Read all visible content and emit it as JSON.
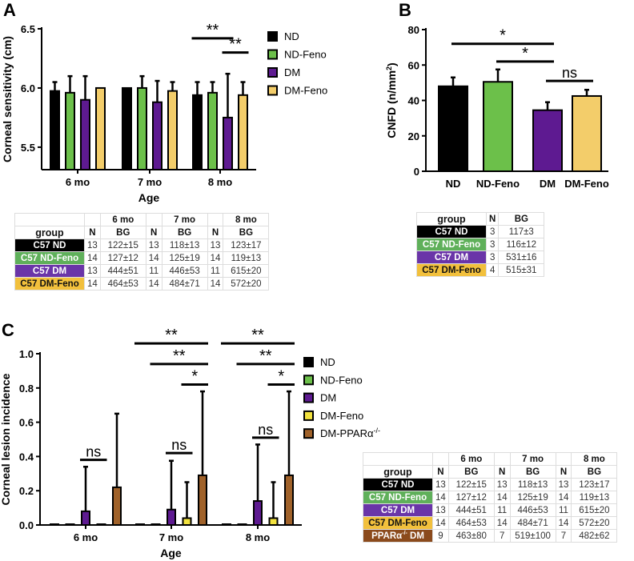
{
  "panels": {
    "a": "A",
    "b": "B",
    "c": "C"
  },
  "chart_data": [
    {
      "id": "A",
      "type": "bar",
      "title": "",
      "xlabel": "Age",
      "ylabel": "Corneal sensitivity (cm)",
      "ylim": [
        5.31,
        6.5
      ],
      "yticks": [
        "5.5",
        "6.0",
        "6.5"
      ],
      "ytick_values": [
        5.5,
        6.0,
        6.5
      ],
      "categories": [
        "6 mo",
        "7 mo",
        "8 mo"
      ],
      "series": [
        {
          "name": "ND",
          "color": "#000000",
          "values": [
            5.975,
            6.0,
            5.94
          ],
          "err_upper": [
            6.05,
            6.0,
            6.05
          ]
        },
        {
          "name": "ND-Feno",
          "color": "#6cc04a",
          "values": [
            5.96,
            6.0,
            5.96
          ],
          "err_upper": [
            6.1,
            6.1,
            6.05
          ]
        },
        {
          "name": "DM",
          "color": "#5e1a91",
          "values": [
            5.9,
            5.88,
            5.75
          ],
          "err_upper": [
            6.1,
            6.06,
            6.12
          ]
        },
        {
          "name": "DM-Feno",
          "color": "#f3cd6a",
          "values": [
            6.0,
            5.975,
            5.94
          ],
          "err_upper": [
            6.0,
            6.05,
            6.05
          ]
        }
      ],
      "legend": "right",
      "annotations": [
        {
          "label": "**",
          "group": 2,
          "from": 0,
          "to": 2,
          "y": 6.42
        },
        {
          "label": "**",
          "group": 2,
          "from": 2,
          "to": 3,
          "y": 6.3
        }
      ]
    },
    {
      "id": "B",
      "type": "bar",
      "title": "",
      "xlabel": "",
      "ylabel": "CNFD (n/mm",
      "ylabel_sup": "2",
      "ylabel_end": ")",
      "ylim": [
        0,
        80
      ],
      "yticks": [
        "0",
        "20",
        "40",
        "60",
        "80"
      ],
      "ytick_values": [
        0,
        20,
        40,
        60,
        80
      ],
      "categories": [
        "ND",
        "ND-Feno",
        "DM",
        "DM-Feno"
      ],
      "colors": [
        "#000000",
        "#6cc04a",
        "#5e1a91",
        "#f3cd6a"
      ],
      "values": [
        48,
        50.5,
        34.5,
        42.5
      ],
      "err_upper": [
        53,
        57.5,
        39,
        46
      ],
      "annotations": [
        {
          "label": "*",
          "from": 0,
          "to": 2,
          "y": 72
        },
        {
          "label": "*",
          "from": 1,
          "to": 2,
          "y": 62
        },
        {
          "label": "ns",
          "from": 2,
          "to": 3,
          "y": 51
        }
      ]
    },
    {
      "id": "C",
      "type": "bar",
      "title": "",
      "xlabel": "Age",
      "ylabel": "Corneal lesion incidence",
      "ylim": [
        0,
        1.0
      ],
      "yticks": [
        "0.0",
        "0.2",
        "0.4",
        "0.6",
        "0.8",
        "1.0"
      ],
      "ytick_values": [
        0,
        0.2,
        0.4,
        0.6,
        0.8,
        1.0
      ],
      "categories": [
        "6 mo",
        "7 mo",
        "8 mo"
      ],
      "series": [
        {
          "name": "ND",
          "color": "#000000",
          "values": [
            0,
            0,
            0
          ],
          "err_upper": [
            0,
            0,
            0
          ]
        },
        {
          "name": "ND-Feno",
          "color": "#6cc04a",
          "values": [
            0,
            0,
            0
          ],
          "err_upper": [
            0,
            0,
            0
          ]
        },
        {
          "name": "DM",
          "color": "#5e1a91",
          "values": [
            0.08,
            0.09,
            0.14
          ],
          "err_upper": [
            0.34,
            0.375,
            0.47
          ]
        },
        {
          "name": "DM-Feno",
          "color": "#f2e23e",
          "values": [
            0,
            0.04,
            0.04
          ],
          "err_upper": [
            0,
            0.25,
            0.25
          ]
        },
        {
          "name": "DM-PPARα",
          "sup": "-/-",
          "color": "#a0622a",
          "values": [
            0.22,
            0.29,
            0.29
          ],
          "err_upper": [
            0.65,
            0.78,
            0.78
          ]
        }
      ],
      "legend": "right",
      "annotations": [
        {
          "label": "ns",
          "group": 0,
          "from": 2,
          "to": 3,
          "y": 0.38
        },
        {
          "label": "ns",
          "group": 1,
          "from": 2,
          "to": 3,
          "y": 0.42
        },
        {
          "label": "ns",
          "group": 2,
          "from": 2,
          "to": 3,
          "y": 0.51
        },
        {
          "label": "**",
          "group": 1,
          "from": 0,
          "to": 4,
          "y": 1.06
        },
        {
          "label": "**",
          "group": 1,
          "from": 1,
          "to": 4,
          "y": 0.94
        },
        {
          "label": "*",
          "group": 1,
          "from": 3,
          "to": 4,
          "y": 0.82
        },
        {
          "label": "**",
          "group": 2,
          "from": 0,
          "to": 4,
          "y": 1.06
        },
        {
          "label": "**",
          "group": 2,
          "from": 1,
          "to": 4,
          "y": 0.94
        },
        {
          "label": "*",
          "group": 2,
          "from": 3,
          "to": 4,
          "y": 0.82
        }
      ]
    }
  ],
  "table_a": {
    "months": [
      "6 mo",
      "7 mo",
      "8 mo"
    ],
    "group_header": "group",
    "n": "N",
    "bg": "BG",
    "rows": [
      {
        "group": "C57 ND",
        "color": "#000000",
        "text": "#ffffff",
        "cells": [
          "13",
          "122±15",
          "13",
          "118±13",
          "13",
          "123±17"
        ]
      },
      {
        "group": "C57 ND-Feno",
        "color": "#5fb05a",
        "text": "#ffffff",
        "cells": [
          "14",
          "127±12",
          "14",
          "125±19",
          "14",
          "119±13"
        ]
      },
      {
        "group": "C57 DM",
        "color": "#6a35a8",
        "text": "#ffffff",
        "cells": [
          "13",
          "444±51",
          "11",
          "446±53",
          "11",
          "615±20"
        ]
      },
      {
        "group": "C57 DM-Feno",
        "color": "#f2c03c",
        "text": "#111111",
        "cells": [
          "14",
          "464±53",
          "14",
          "484±71",
          "14",
          "572±20"
        ]
      }
    ]
  },
  "table_b": {
    "group_header": "group",
    "n": "N",
    "bg": "BG",
    "rows": [
      {
        "group": "C57 ND",
        "color": "#000000",
        "text": "#ffffff",
        "cells": [
          "3",
          "117±3"
        ]
      },
      {
        "group": "C57 ND-Feno",
        "color": "#5fb05a",
        "text": "#ffffff",
        "cells": [
          "3",
          "116±12"
        ]
      },
      {
        "group": "C57 DM",
        "color": "#6a35a8",
        "text": "#ffffff",
        "cells": [
          "3",
          "531±16"
        ]
      },
      {
        "group": "C57 DM-Feno",
        "color": "#f2c03c",
        "text": "#111111",
        "cells": [
          "4",
          "515±31"
        ]
      }
    ]
  },
  "table_c": {
    "months": [
      "6 mo",
      "7 mo",
      "8 mo"
    ],
    "group_header": "group",
    "n": "N",
    "bg": "BG",
    "rows": [
      {
        "group": "C57 ND",
        "color": "#000000",
        "text": "#ffffff",
        "cells": [
          "13",
          "122±15",
          "13",
          "118±13",
          "13",
          "123±17"
        ]
      },
      {
        "group": "C57 ND-Feno",
        "color": "#5fb05a",
        "text": "#ffffff",
        "cells": [
          "14",
          "127±12",
          "14",
          "125±19",
          "14",
          "119±13"
        ]
      },
      {
        "group": "C57 DM",
        "color": "#6a35a8",
        "text": "#ffffff",
        "cells": [
          "13",
          "444±51",
          "11",
          "446±53",
          "11",
          "615±20"
        ]
      },
      {
        "group": "C57 DM-Feno",
        "color": "#f2c03c",
        "text": "#111111",
        "cells": [
          "14",
          "464±53",
          "14",
          "484±71",
          "14",
          "572±20"
        ]
      },
      {
        "group": "PPARα",
        "sup": "-/-",
        "group_end": " DM",
        "color": "#8b4a1c",
        "text": "#ffffff",
        "cells": [
          "9",
          "463±80",
          "7",
          "519±100",
          "7",
          "482±62"
        ]
      }
    ]
  }
}
